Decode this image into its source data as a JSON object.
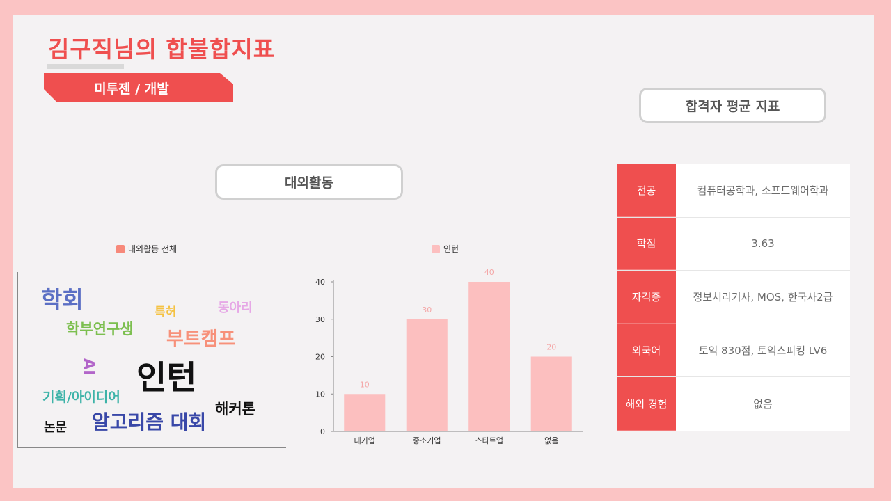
{
  "header": {
    "title": "김구직님의 합불합지표",
    "role": "미투젠 / 개발"
  },
  "avg_section": {
    "label": "합격자 평균 지표"
  },
  "activity_section": {
    "label": "대외활동"
  },
  "word_cloud": {
    "legend": "대외활동 전체",
    "legend_color": "#f7897a",
    "words": [
      {
        "text": "학회",
        "color": "#5b6fc4"
      },
      {
        "text": "특허",
        "color": "#f5c242"
      },
      {
        "text": "동아리",
        "color": "#e6a8e6"
      },
      {
        "text": "학부연구생",
        "color": "#7cbf4f"
      },
      {
        "text": "부트캠프",
        "color": "#f7917a"
      },
      {
        "text": "AI",
        "color": "#b265c9"
      },
      {
        "text": "인턴",
        "color": "#111111"
      },
      {
        "text": "기획/아이디어",
        "color": "#3db3a8"
      },
      {
        "text": "해커톤",
        "color": "#111111"
      },
      {
        "text": "논문",
        "color": "#111111"
      },
      {
        "text": "알고리즘 대회",
        "color": "#3948a8"
      }
    ]
  },
  "chart_data": {
    "type": "bar",
    "categories": [
      "대기업",
      "중소기업",
      "스타트업",
      "없음"
    ],
    "series": [
      {
        "name": "인턴",
        "values": [
          10,
          30,
          40,
          20
        ],
        "color": "#fcbfbf"
      }
    ],
    "ylim": [
      0,
      40
    ],
    "yticks": [
      0,
      10,
      20,
      30,
      40
    ],
    "legend": "top",
    "grid": false
  },
  "stats_table": {
    "rows": [
      {
        "label": "전공",
        "value": "컴퓨터공학과, 소프트웨어학과"
      },
      {
        "label": "학점",
        "value": "3.63"
      },
      {
        "label": "자격증",
        "value": "정보처리기사, MOS, 한국사2급"
      },
      {
        "label": "외국어",
        "value": "토익 830점, 토익스피킹 LV6"
      },
      {
        "label": "해외 경험",
        "value": "없음"
      }
    ]
  },
  "colors": {
    "accent": "#ef4f4f",
    "background": "#fbc4c4",
    "panel": "#f4f2f3"
  }
}
